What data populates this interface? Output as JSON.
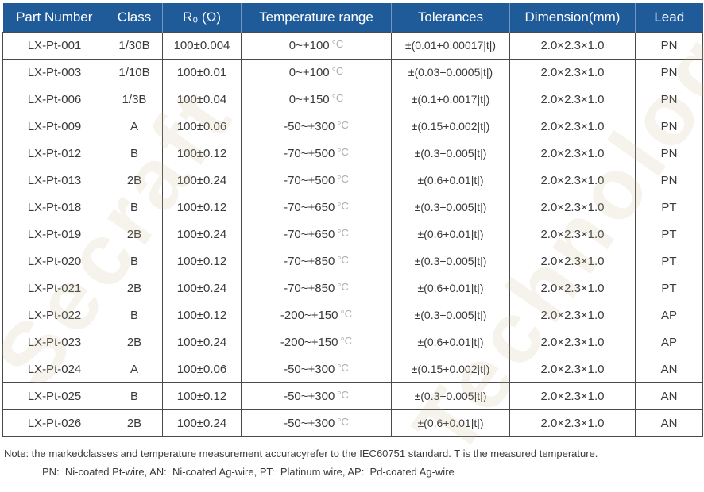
{
  "header": {
    "columns": [
      "Part Number",
      "Class",
      "R₀ (Ω)",
      "Temperature range",
      "Tolerances",
      "Dimension(mm)",
      "Lead"
    ]
  },
  "table": {
    "temp_unit": "°C",
    "rows": [
      {
        "part": "LX-Pt-001",
        "cls": "1/30B",
        "r0": "100±0.004",
        "temp": "0~+100",
        "tol": "±(0.01+0.00017|t|)",
        "dim": "2.0×2.3×1.0",
        "lead": "PN"
      },
      {
        "part": "LX-Pt-003",
        "cls": "1/10B",
        "r0": "100±0.01",
        "temp": "0~+100",
        "tol": "±(0.03+0.0005|t|)",
        "dim": "2.0×2.3×1.0",
        "lead": "PN"
      },
      {
        "part": "LX-Pt-006",
        "cls": "1/3B",
        "r0": "100±0.04",
        "temp": "0~+150",
        "tol": "±(0.1+0.0017|t|)",
        "dim": "2.0×2.3×1.0",
        "lead": "PN"
      },
      {
        "part": "LX-Pt-009",
        "cls": "A",
        "r0": "100±0.06",
        "temp": "-50~+300",
        "tol": "±(0.15+0.002|t|)",
        "dim": "2.0×2.3×1.0",
        "lead": "PN"
      },
      {
        "part": "LX-Pt-012",
        "cls": "B",
        "r0": "100±0.12",
        "temp": "-70~+500",
        "tol": "±(0.3+0.005|t|)",
        "dim": "2.0×2.3×1.0",
        "lead": "PN"
      },
      {
        "part": "LX-Pt-013",
        "cls": "2B",
        "r0": "100±0.24",
        "temp": "-70~+500",
        "tol": "±(0.6+0.01|t|)",
        "dim": "2.0×2.3×1.0",
        "lead": "PN"
      },
      {
        "part": "LX-Pt-018",
        "cls": "B",
        "r0": "100±0.12",
        "temp": "-70~+650",
        "tol": "±(0.3+0.005|t|)",
        "dim": "2.0×2.3×1.0",
        "lead": "PT"
      },
      {
        "part": "LX-Pt-019",
        "cls": "2B",
        "r0": "100±0.24",
        "temp": "-70~+650",
        "tol": "±(0.6+0.01|t|)",
        "dim": "2.0×2.3×1.0",
        "lead": "PT"
      },
      {
        "part": "LX-Pt-020",
        "cls": "B",
        "r0": "100±0.12",
        "temp": "-70~+850",
        "tol": "±(0.3+0.005|t|)",
        "dim": "2.0×2.3×1.0",
        "lead": "PT"
      },
      {
        "part": "LX-Pt-021",
        "cls": "2B",
        "r0": "100±0.24",
        "temp": "-70~+850",
        "tol": "±(0.6+0.01|t|)",
        "dim": "2.0×2.3×1.0",
        "lead": "PT"
      },
      {
        "part": "LX-Pt-022",
        "cls": "B",
        "r0": "100±0.12",
        "temp": "-200~+150",
        "tol": "±(0.3+0.005|t|)",
        "dim": "2.0×2.3×1.0",
        "lead": "AP"
      },
      {
        "part": "LX-Pt-023",
        "cls": "2B",
        "r0": "100±0.24",
        "temp": "-200~+150",
        "tol": "±(0.6+0.01|t|)",
        "dim": "2.0×2.3×1.0",
        "lead": "AP"
      },
      {
        "part": "LX-Pt-024",
        "cls": "A",
        "r0": "100±0.06",
        "temp": "-50~+300",
        "tol": "±(0.15+0.002|t|)",
        "dim": "2.0×2.3×1.0",
        "lead": "AN"
      },
      {
        "part": "LX-Pt-025",
        "cls": "B",
        "r0": "100±0.12",
        "temp": "-50~+300",
        "tol": "±(0.3+0.005|t|)",
        "dim": "2.0×2.3×1.0",
        "lead": "AN"
      },
      {
        "part": "LX-Pt-026",
        "cls": "2B",
        "r0": "100±0.24",
        "temp": "-50~+300",
        "tol": "±(0.6+0.01|t|)",
        "dim": "2.0×2.3×1.0",
        "lead": "AN"
      }
    ]
  },
  "notes": {
    "line1": "Note: the markedclasses and temperature measurement accuracyrefer to the IEC60751 standard. T is the measured temperature.",
    "line2": "PN:  Ni-coated Pt-wire, AN:  Ni-coated Ag-wire, PT:  Platinum wire, AP:  Pd-coated Ag-wire"
  },
  "watermark": {
    "left_text": "Secraft",
    "right_text": "Technology"
  },
  "colors": {
    "header_bg": "#1f5a99",
    "header_text": "#ffffff",
    "header_divider": "#7596c2",
    "cell_border": "#4a4a4a",
    "cell_text": "#3a3a3a",
    "unit_text": "#a9aeb4",
    "watermark": "#cebA98"
  }
}
